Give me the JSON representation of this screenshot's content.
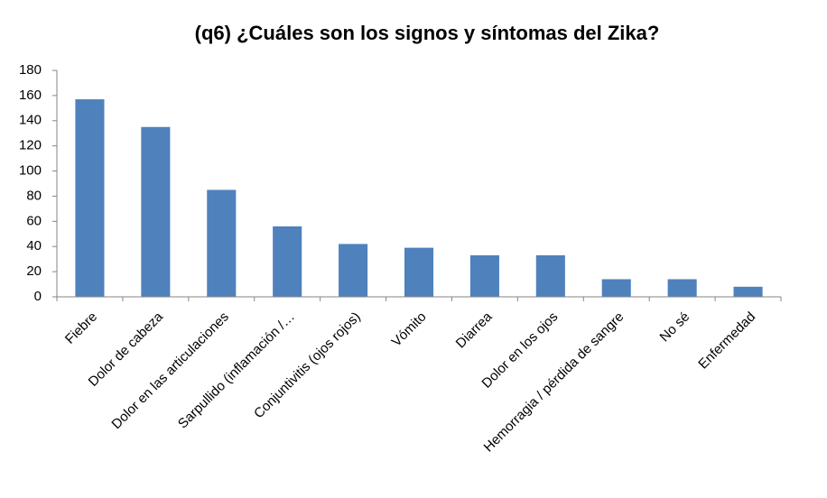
{
  "chart_data": {
    "type": "bar",
    "title": "(q6) ¿Cuáles son los signos y síntomas del Zika?",
    "categories": [
      "Fiebre",
      "Dolor de cabeza",
      "Dolor en las articulaciones",
      "Sarpullido (inflamación /…",
      "Conjuntivitis (ojos rojos)",
      "Vómito",
      "Diarrea",
      "Dolor en los ojos",
      "Hemorragia / pérdida de sangre",
      "No sé",
      "Enfermedad"
    ],
    "values": [
      157,
      135,
      85,
      56,
      42,
      39,
      33,
      33,
      14,
      14,
      8
    ],
    "color": "#4f81bd",
    "ylim": [
      0,
      180
    ],
    "yticks": [
      0,
      20,
      40,
      60,
      80,
      100,
      120,
      140,
      160,
      180
    ],
    "grid": false
  }
}
